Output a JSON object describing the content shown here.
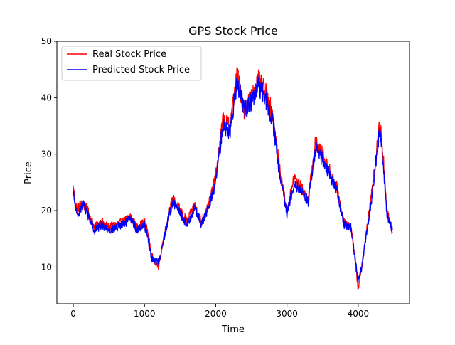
{
  "chart_data": {
    "type": "line",
    "title": "GPS Stock Price",
    "xlabel": "Time",
    "ylabel": "Price",
    "xlim": [
      -230,
      4720
    ],
    "ylim": [
      3.5,
      50
    ],
    "x_ticks": [
      0,
      1000,
      2000,
      3000,
      4000
    ],
    "x_tick_labels": [
      "0",
      "1000",
      "2000",
      "3000",
      "4000"
    ],
    "y_ticks": [
      10,
      20,
      30,
      40,
      50
    ],
    "y_tick_labels": [
      "10",
      "20",
      "30",
      "40",
      "50"
    ],
    "grid": false,
    "legend": {
      "position": "upper-left"
    },
    "series": [
      {
        "name": "Real Stock Price",
        "color": "#ff0000",
        "x": [
          0,
          50,
          100,
          150,
          200,
          300,
          400,
          500,
          600,
          700,
          800,
          900,
          1000,
          1050,
          1100,
          1150,
          1200,
          1250,
          1300,
          1350,
          1400,
          1500,
          1600,
          1700,
          1800,
          1900,
          2000,
          2100,
          2200,
          2300,
          2400,
          2500,
          2600,
          2700,
          2800,
          2900,
          3000,
          3100,
          3200,
          3300,
          3400,
          3500,
          3600,
          3700,
          3800,
          3900,
          3950,
          4000,
          4050,
          4100,
          4200,
          4300,
          4350,
          4400,
          4450,
          4480
        ],
        "y": [
          24,
          20,
          21,
          21,
          20,
          17,
          18,
          17,
          17.5,
          18,
          19,
          17,
          18,
          16,
          12,
          11,
          10,
          14,
          17,
          20,
          22,
          20,
          18,
          21,
          18,
          21,
          26,
          36,
          35,
          44,
          38,
          40,
          43,
          41,
          37,
          27,
          20,
          26,
          24,
          22,
          32,
          30,
          27,
          24,
          18,
          17,
          12,
          6,
          10,
          15,
          24,
          36,
          30,
          20,
          18,
          16
        ]
      },
      {
        "name": "Predicted Stock Price",
        "color": "#0000ff",
        "x": [
          0,
          50,
          100,
          150,
          200,
          300,
          400,
          500,
          600,
          700,
          800,
          900,
          1000,
          1050,
          1100,
          1150,
          1200,
          1250,
          1300,
          1350,
          1400,
          1500,
          1600,
          1700,
          1800,
          1900,
          2000,
          2100,
          2200,
          2300,
          2400,
          2500,
          2600,
          2700,
          2800,
          2900,
          3000,
          3100,
          3200,
          3300,
          3400,
          3500,
          3600,
          3700,
          3800,
          3900,
          3950,
          4000,
          4050,
          4100,
          4200,
          4300,
          4350,
          4400,
          4450,
          4480
        ],
        "y": [
          23,
          19,
          20.5,
          21,
          19.5,
          16.5,
          17.5,
          16.5,
          17,
          17.5,
          18.5,
          16.5,
          17.5,
          15,
          11.5,
          11,
          11,
          13.5,
          16.5,
          19.5,
          21.5,
          19.5,
          17.5,
          20.5,
          17.5,
          20.5,
          25,
          35,
          34,
          43,
          38,
          39,
          42,
          40,
          36,
          26,
          19.5,
          25,
          23.5,
          21.5,
          31,
          29,
          26.5,
          23.5,
          17.5,
          17,
          12,
          7.5,
          10,
          14.5,
          23,
          34,
          29,
          19.5,
          17.5,
          16.5
        ]
      }
    ]
  }
}
